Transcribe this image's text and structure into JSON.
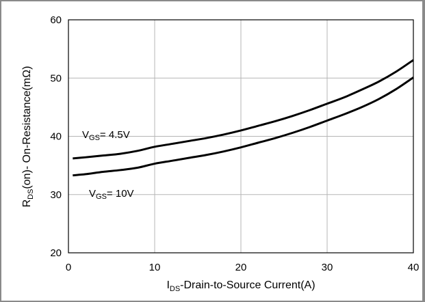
{
  "chart_data": {
    "type": "line",
    "xlabel_main": "I",
    "xlabel_sub": "DS",
    "xlabel_rest": "-Drain-to-Source  Current(A)",
    "ylabel_main": "R",
    "ylabel_sub": "DS",
    "ylabel_rest": "(on)- On-Resistance(mΩ)",
    "xlim": [
      0,
      40
    ],
    "ylim": [
      20,
      60
    ],
    "xticks": [
      "0",
      "10",
      "20",
      "30",
      "40"
    ],
    "yticks": [
      "20",
      "30",
      "40",
      "50",
      "60"
    ],
    "grid": true,
    "series": [
      {
        "name": "VGS= 4.5V",
        "label_main": "V",
        "label_sub": "GS",
        "label_rest": "= 4.5V",
        "x": [
          0.5,
          2,
          4,
          6,
          8,
          10,
          12,
          14,
          16,
          18,
          20,
          22,
          24,
          26,
          28,
          30,
          32,
          34,
          36,
          38,
          40
        ],
        "y": [
          36.2,
          36.4,
          36.7,
          37.0,
          37.5,
          38.2,
          38.7,
          39.2,
          39.7,
          40.3,
          41.0,
          41.8,
          42.6,
          43.5,
          44.5,
          45.6,
          46.7,
          48.0,
          49.4,
          51.1,
          53.1
        ]
      },
      {
        "name": "VGS= 10V",
        "label_main": "V",
        "label_sub": "GS",
        "label_rest": "= 10V",
        "x": [
          0.5,
          2,
          4,
          6,
          8,
          10,
          12,
          14,
          16,
          18,
          20,
          22,
          24,
          26,
          28,
          30,
          32,
          34,
          36,
          38,
          40
        ],
        "y": [
          33.3,
          33.5,
          33.9,
          34.2,
          34.6,
          35.3,
          35.8,
          36.3,
          36.8,
          37.4,
          38.1,
          38.9,
          39.7,
          40.6,
          41.6,
          42.7,
          43.8,
          45.0,
          46.4,
          48.1,
          50.1
        ]
      }
    ]
  }
}
